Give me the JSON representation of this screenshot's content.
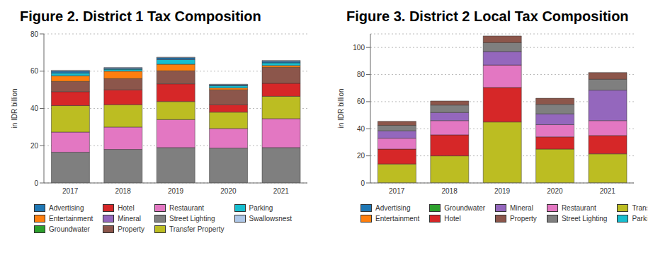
{
  "chart_data": [
    {
      "type": "bar",
      "title": "Figure 2. District 1 Tax Composition",
      "y_label": "in IDR billion",
      "stacked": true,
      "grid": true,
      "legend": "bottom",
      "categories": [
        "2017",
        "2018",
        "2019",
        "2020",
        "2021"
      ],
      "ylim": [
        0,
        80
      ],
      "yticks": [
        0,
        20,
        40,
        60,
        80
      ],
      "series": [
        {
          "name": "Advertising",
          "color": "#1f77b4",
          "values": [
            1,
            0.5,
            1,
            0.5,
            0.8
          ]
        },
        {
          "name": "Entertainment",
          "color": "#ff7f0e",
          "values": [
            3,
            4,
            3.5,
            1,
            1
          ]
        },
        {
          "name": "Groundwater",
          "color": "#2ca02c",
          "values": [
            0,
            0,
            0,
            0,
            0
          ]
        },
        {
          "name": "Hotel",
          "color": "#d62728",
          "values": [
            7.5,
            8,
            9.5,
            4,
            7
          ]
        },
        {
          "name": "Mineral",
          "color": "#9467bd",
          "values": [
            0,
            0,
            0,
            0,
            0
          ]
        },
        {
          "name": "Property",
          "color": "#8c564b",
          "values": [
            5.5,
            6,
            7,
            8,
            8.5
          ]
        },
        {
          "name": "Restaurant",
          "color": "#e377c2",
          "values": [
            10.8,
            12,
            15,
            10.5,
            15.5
          ]
        },
        {
          "name": "Street Lighting",
          "color": "#7f7f7f",
          "values": [
            16.5,
            18,
            19,
            18.7,
            19
          ]
        },
        {
          "name": "Transfer Property",
          "color": "#bcbd22",
          "values": [
            14.2,
            12,
            9.7,
            8.8,
            12
          ]
        },
        {
          "name": "Parking",
          "color": "#17becf",
          "values": [
            1.5,
            1,
            2.5,
            1.2,
            1.5
          ]
        },
        {
          "name": "Swallowsnest",
          "color": "#aec7e8",
          "values": [
            0.5,
            0.5,
            0.3,
            0.3,
            0.5
          ]
        }
      ]
    },
    {
      "type": "bar",
      "title": "Figure 3. District 2 Local Tax Composition",
      "y_label": "in IDR billion",
      "stacked": true,
      "grid": true,
      "legend": "bottom",
      "categories": [
        "2017",
        "2018",
        "2019",
        "2020",
        "2021"
      ],
      "ylim": [
        0,
        110
      ],
      "yticks": [
        0,
        20,
        40,
        60,
        80,
        100
      ],
      "series": [
        {
          "name": "Advertising",
          "color": "#1f77b4",
          "values": [
            0,
            0,
            0,
            0,
            0
          ]
        },
        {
          "name": "Entertainment",
          "color": "#ff7f0e",
          "values": [
            0,
            0,
            0,
            0,
            0
          ]
        },
        {
          "name": "Groundwater",
          "color": "#2ca02c",
          "values": [
            0,
            0,
            0,
            0,
            0
          ]
        },
        {
          "name": "Hotel",
          "color": "#d62728",
          "values": [
            11,
            15.5,
            25.5,
            9,
            13.5
          ]
        },
        {
          "name": "Mineral",
          "color": "#9467bd",
          "values": [
            5.5,
            6,
            10,
            8,
            22.5
          ]
        },
        {
          "name": "Property",
          "color": "#8c564b",
          "values": [
            3,
            3,
            5,
            4.5,
            5
          ]
        },
        {
          "name": "Restaurant",
          "color": "#e377c2",
          "values": [
            8,
            10.5,
            16.5,
            9,
            11
          ]
        },
        {
          "name": "Street Lighting",
          "color": "#7f7f7f",
          "values": [
            4,
            5.5,
            6.5,
            7,
            8
          ]
        },
        {
          "name": "Transfer Property",
          "color": "#bcbd22",
          "values": [
            14,
            20,
            45,
            25,
            21.5
          ]
        },
        {
          "name": "Parking",
          "color": "#17becf",
          "values": [
            0,
            0,
            0,
            0,
            0
          ]
        }
      ]
    }
  ]
}
